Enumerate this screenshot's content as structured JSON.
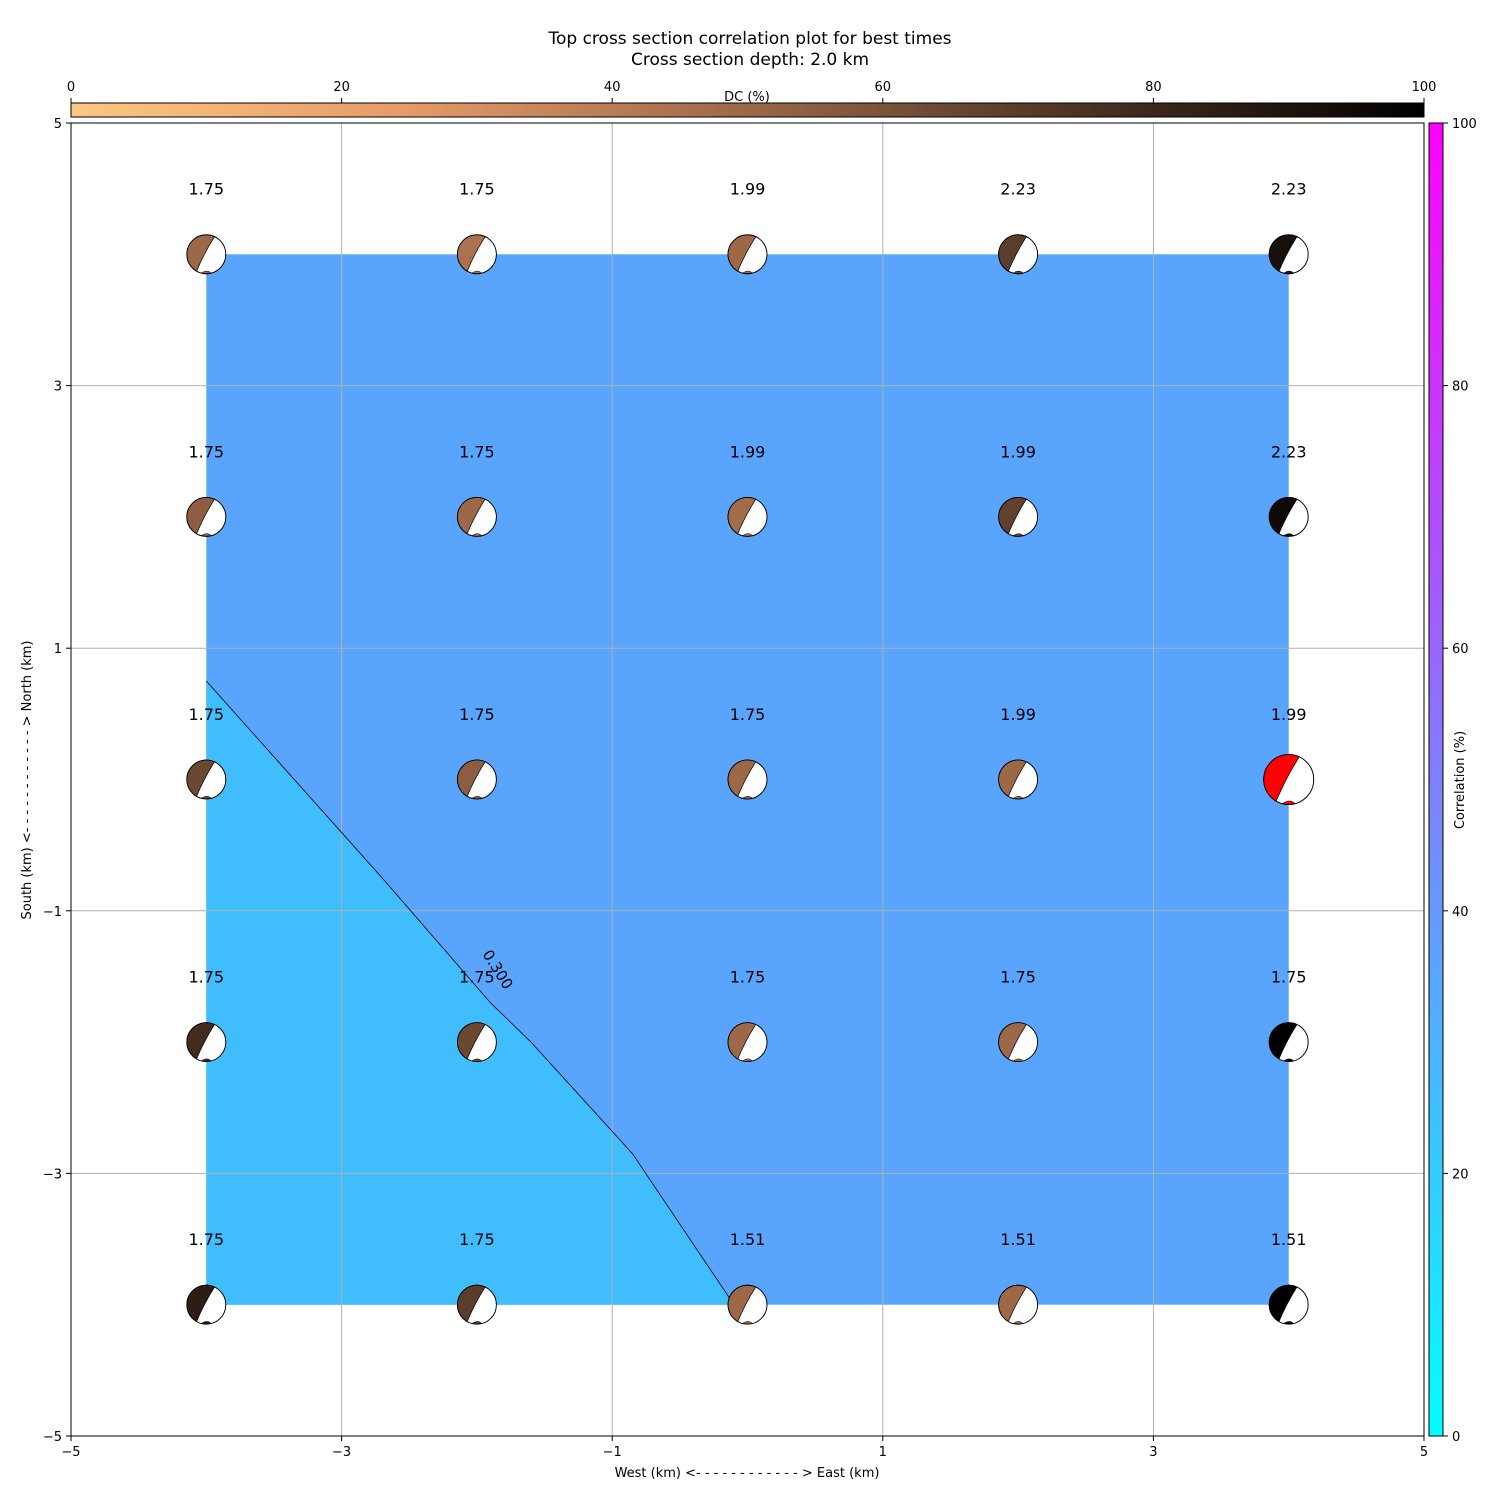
{
  "chart_data": {
    "type": "heatmap",
    "title": "Top cross section correlation plot for best times",
    "subtitle": "Cross section depth: 2.0 km",
    "xlabel": "West (km) <- - - - - - - - - - - - > East (km)",
    "ylabel": "South (km) <- - - - - - - - - - - - > North (km)",
    "xlim": [
      -5,
      5
    ],
    "ylim": [
      -5,
      5
    ],
    "xticks": [
      "−5",
      "−3",
      "−1",
      "1",
      "3",
      "5"
    ],
    "yticks": [
      "−5",
      "−3",
      "−1",
      "1",
      "3",
      "5"
    ],
    "grid": true,
    "dc_colorbar": {
      "label": "DC (%)",
      "range": [
        0,
        100
      ],
      "ticks": [
        "0",
        "20",
        "40",
        "60",
        "80",
        "100"
      ],
      "placement": "top"
    },
    "correlation_colorbar": {
      "label": "Correlation (%)",
      "range": [
        0,
        100
      ],
      "ticks": [
        "0",
        "20",
        "40",
        "60",
        "80",
        "100"
      ],
      "placement": "right"
    },
    "field": {
      "x_range": [
        -4,
        4
      ],
      "y_range": [
        -4,
        4
      ],
      "low_region_color": "#40BDFC",
      "high_region_color": "#59A4FC",
      "contour_label": "0.300",
      "contour_path": [
        [
          -4,
          0.75
        ],
        [
          -3.35,
          0
        ],
        [
          -2.7,
          -0.75
        ],
        [
          -1.9,
          -1.7
        ],
        [
          -1.6,
          -2
        ],
        [
          -0.85,
          -2.85
        ],
        [
          -0.1,
          -4
        ]
      ]
    },
    "points": [
      {
        "x": -4,
        "y": 4,
        "time": "1.75",
        "dc": 50
      },
      {
        "x": -2,
        "y": 4,
        "time": "1.75",
        "dc": 45
      },
      {
        "x": 0,
        "y": 4,
        "time": "1.99",
        "dc": 50
      },
      {
        "x": 2,
        "y": 4,
        "time": "2.23",
        "dc": 70
      },
      {
        "x": 4,
        "y": 4,
        "time": "2.23",
        "dc": 92
      },
      {
        "x": -4,
        "y": 2,
        "time": "1.75",
        "dc": 55
      },
      {
        "x": -2,
        "y": 2,
        "time": "1.75",
        "dc": 50
      },
      {
        "x": 0,
        "y": 2,
        "time": "1.99",
        "dc": 48
      },
      {
        "x": 2,
        "y": 2,
        "time": "1.99",
        "dc": 68
      },
      {
        "x": 4,
        "y": 2,
        "time": "2.23",
        "dc": 95
      },
      {
        "x": -4,
        "y": 0,
        "time": "1.75",
        "dc": 65
      },
      {
        "x": -2,
        "y": 0,
        "time": "1.75",
        "dc": 55
      },
      {
        "x": 0,
        "y": 0,
        "time": "1.75",
        "dc": 50
      },
      {
        "x": 2,
        "y": 0,
        "time": "1.99",
        "dc": 50
      },
      {
        "x": 4,
        "y": 0,
        "time": "1.99",
        "dc": null,
        "best": true
      },
      {
        "x": -4,
        "y": -2,
        "time": "1.75",
        "dc": 78
      },
      {
        "x": -2,
        "y": -2,
        "time": "1.75",
        "dc": 65
      },
      {
        "x": 0,
        "y": -2,
        "time": "1.75",
        "dc": 50
      },
      {
        "x": 2,
        "y": -2,
        "time": "1.75",
        "dc": 50
      },
      {
        "x": 4,
        "y": -2,
        "time": "1.75",
        "dc": 100
      },
      {
        "x": -4,
        "y": -4,
        "time": "1.75",
        "dc": 85
      },
      {
        "x": -2,
        "y": -4,
        "time": "1.75",
        "dc": 70
      },
      {
        "x": 0,
        "y": -4,
        "time": "1.51",
        "dc": 50
      },
      {
        "x": 2,
        "y": -4,
        "time": "1.51",
        "dc": 50
      },
      {
        "x": 4,
        "y": -4,
        "time": "1.51",
        "dc": 100
      }
    ],
    "best_color": "#FF0000"
  }
}
